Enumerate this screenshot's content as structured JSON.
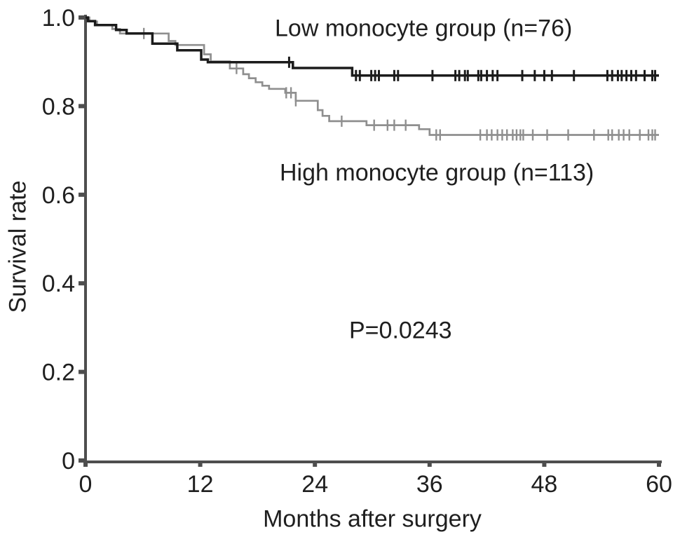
{
  "chart_data": {
    "type": "line",
    "subtype": "kaplan_meier_survival_step",
    "title": "",
    "xlabel": "Months after surgery",
    "ylabel": "Survival rate",
    "p_value": "P=0.0243",
    "xlim": [
      0,
      60
    ],
    "ylim": [
      0,
      1.0
    ],
    "xticks": [
      0,
      12,
      24,
      36,
      48,
      60
    ],
    "xtick_labels": [
      "0",
      "12",
      "24",
      "36",
      "48",
      "60"
    ],
    "ytick_values": [
      1.0,
      0.8,
      0.6,
      0.4,
      0.2,
      0
    ],
    "ytick_labels": [
      "1.0",
      "0.8",
      "0.6",
      "0.4",
      "0.2",
      "0"
    ],
    "grid": false,
    "legend_position": "inline-labels-near-curves",
    "colors": {
      "background": "#ffffff",
      "axis": "#4e4e4e",
      "text": "#1f1f1f",
      "low_group_curve": "#1b1b1b",
      "high_group_curve": "#8f8f8f"
    },
    "annotations": [
      {
        "text": "P=0.0243",
        "x_months": 32.5,
        "y_rate": 0.29
      },
      {
        "text": "Low monocyte group (n=76)",
        "x_months": 19.8,
        "y_rate": 0.975
      },
      {
        "text": "High monocyte group (n=113)",
        "x_months": 20.3,
        "y_rate": 0.649
      }
    ],
    "series": [
      {
        "name": "Low monocyte group (n=76)",
        "group": "low-monocyte",
        "n": 76,
        "final_survival_rate": 0.869,
        "color": "#1b1b1b",
        "line_width": 3.5,
        "steps_month_survival": [
          [
            0,
            1.0
          ],
          [
            0.25,
            0.992
          ],
          [
            1.0,
            0.983
          ],
          [
            3.2,
            0.972
          ],
          [
            4.3,
            0.964
          ],
          [
            7.0,
            0.941
          ],
          [
            9.6,
            0.926
          ],
          [
            12.1,
            0.905
          ],
          [
            12.8,
            0.899
          ],
          [
            21.7,
            0.886
          ],
          [
            27.9,
            0.869
          ]
        ],
        "censor_marks_months": [
          21.3,
          28.3,
          28.7,
          29.9,
          30.3,
          30.7,
          32.3,
          32.7,
          36.3,
          38.7,
          39.1,
          39.7,
          40.0,
          41.1,
          41.4,
          42.0,
          42.6,
          43.1,
          45.7,
          47.0,
          48.0,
          48.8,
          51.1,
          54.6,
          55.1,
          55.7,
          56.1,
          56.6,
          57.1,
          57.6,
          58.5,
          59.3,
          59.6
        ]
      },
      {
        "name": "High monocyte group (n=113)",
        "group": "high-monocyte",
        "n": 113,
        "final_survival_rate": 0.735,
        "color": "#8f8f8f",
        "line_width": 2.7,
        "steps_month_survival": [
          [
            0,
            1.0
          ],
          [
            0.4,
            0.991
          ],
          [
            1.2,
            0.983
          ],
          [
            2.8,
            0.974
          ],
          [
            3.6,
            0.964
          ],
          [
            8.7,
            0.947
          ],
          [
            9.4,
            0.938
          ],
          [
            12.4,
            0.917
          ],
          [
            13.1,
            0.901
          ],
          [
            15.1,
            0.885
          ],
          [
            16.5,
            0.872
          ],
          [
            17.1,
            0.863
          ],
          [
            17.8,
            0.854
          ],
          [
            18.5,
            0.846
          ],
          [
            19.2,
            0.839
          ],
          [
            20.9,
            0.83
          ],
          [
            22.0,
            0.812
          ],
          [
            24.3,
            0.791
          ],
          [
            24.8,
            0.778
          ],
          [
            25.5,
            0.766
          ],
          [
            29.4,
            0.757
          ],
          [
            34.9,
            0.748
          ],
          [
            36.0,
            0.735
          ]
        ],
        "censor_marks_months": [
          6.1,
          15.8,
          21.0,
          21.5,
          22.0,
          26.8,
          30.2,
          31.6,
          32.3,
          33.5,
          36.7,
          37.1,
          41.3,
          42.0,
          42.5,
          43.1,
          43.6,
          44.1,
          44.7,
          45.1,
          45.5,
          45.8,
          46.8,
          48.3,
          50.5,
          53.2,
          54.7,
          55.1,
          55.8,
          56.3,
          56.9,
          58.0,
          58.9,
          59.3,
          59.6
        ]
      }
    ]
  }
}
